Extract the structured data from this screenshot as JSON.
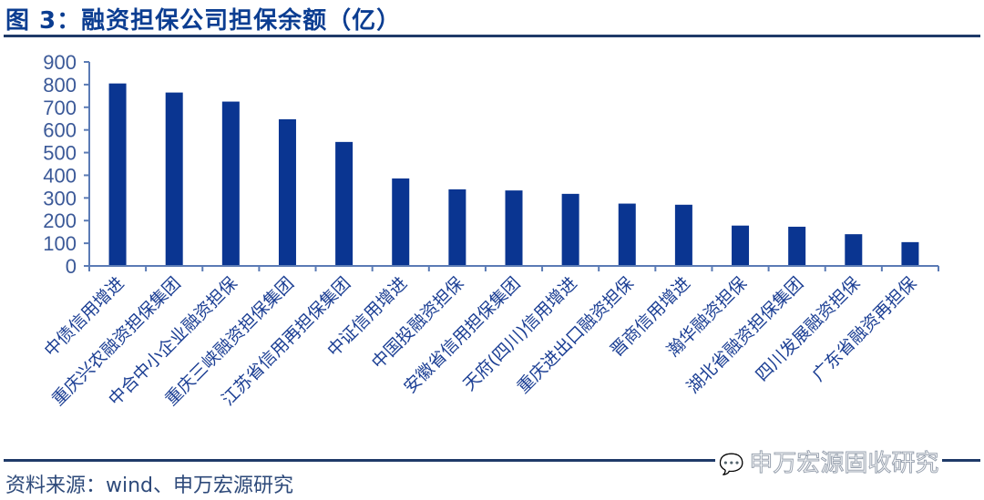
{
  "header": {
    "title": "图 3：融资担保公司担保余额（亿）"
  },
  "footer": {
    "source": "资料来源：wind、申万宏源研究",
    "watermark": "申万宏源固收研究",
    "watermark_icon": "wechat-icon"
  },
  "colors": {
    "bar": "#0a3591",
    "axis": "#5b7bb5",
    "title": "#0b3d91",
    "rule": "#1f3a68"
  },
  "chart_data": {
    "type": "bar",
    "title": "融资担保公司担保余额（亿）",
    "xlabel": "",
    "ylabel": "",
    "ylim": [
      0,
      900
    ],
    "yticks": [
      0,
      100,
      200,
      300,
      400,
      500,
      600,
      700,
      800,
      900
    ],
    "grid": false,
    "legend": null,
    "categories": [
      "中债信用增进",
      "重庆兴农融资担保集团",
      "中合中小企业融资担保",
      "重庆三峡融资担保集团",
      "江苏省信用再担保集团",
      "中证信用增进",
      "中国投融资担保",
      "安徽省信用担保集团",
      "天府(四川)信用增进",
      "重庆进出口融资担保",
      "晋商信用增进",
      "瀚华融资担保",
      "湖北省融资担保集团",
      "四川发展融资担保",
      "广东省融资再担保"
    ],
    "values": [
      805,
      765,
      725,
      647,
      547,
      386,
      338,
      333,
      318,
      275,
      270,
      178,
      173,
      140,
      105
    ]
  }
}
